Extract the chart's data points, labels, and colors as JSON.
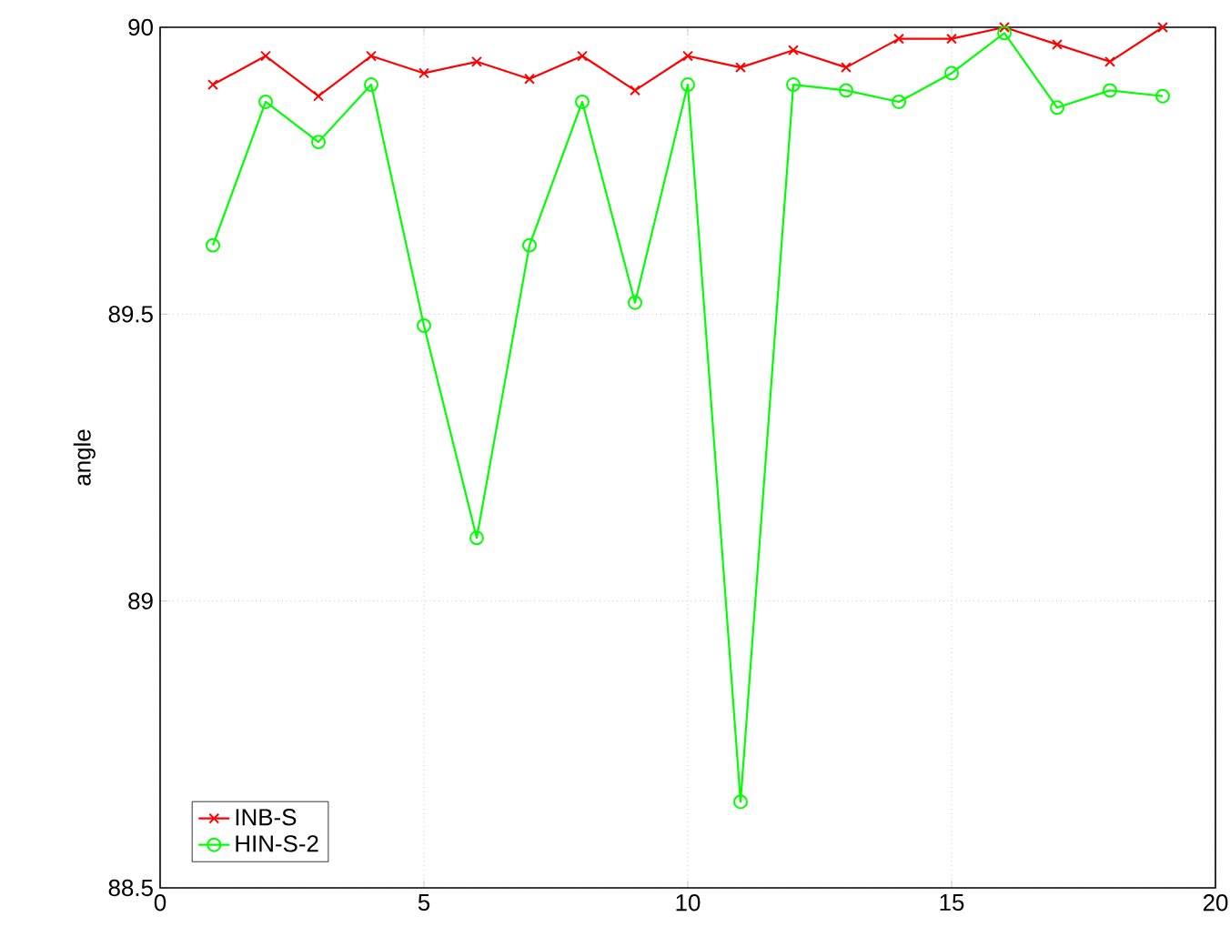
{
  "chart_data": {
    "type": "line",
    "ylabel": "angle",
    "x": [
      1,
      2,
      3,
      4,
      5,
      6,
      7,
      8,
      9,
      10,
      11,
      12,
      13,
      14,
      15,
      16,
      17,
      18,
      19
    ],
    "series": [
      {
        "name": "INB-S",
        "color": "#ff0000",
        "marker": "cross",
        "values": [
          89.9,
          89.95,
          89.88,
          89.95,
          89.92,
          89.94,
          89.91,
          89.95,
          89.89,
          89.95,
          89.93,
          89.96,
          89.93,
          89.98,
          89.98,
          90.0,
          89.97,
          89.94,
          90.0
        ]
      },
      {
        "name": "HIN-S-2",
        "color": "#00ff00",
        "marker": "circle",
        "values": [
          89.62,
          89.87,
          89.8,
          89.9,
          89.48,
          89.11,
          89.62,
          89.87,
          89.52,
          89.9,
          88.65,
          89.9,
          89.89,
          89.87,
          89.92,
          89.99,
          89.86,
          89.89,
          89.88
        ]
      }
    ],
    "xlim": [
      0,
      20
    ],
    "ylim": [
      88.5,
      90
    ],
    "xticks": [
      0,
      5,
      10,
      15,
      20
    ],
    "yticks": [
      88.5,
      89,
      89.5,
      90
    ],
    "grid": true,
    "legend": "bottom left",
    "line_style": "solid"
  }
}
